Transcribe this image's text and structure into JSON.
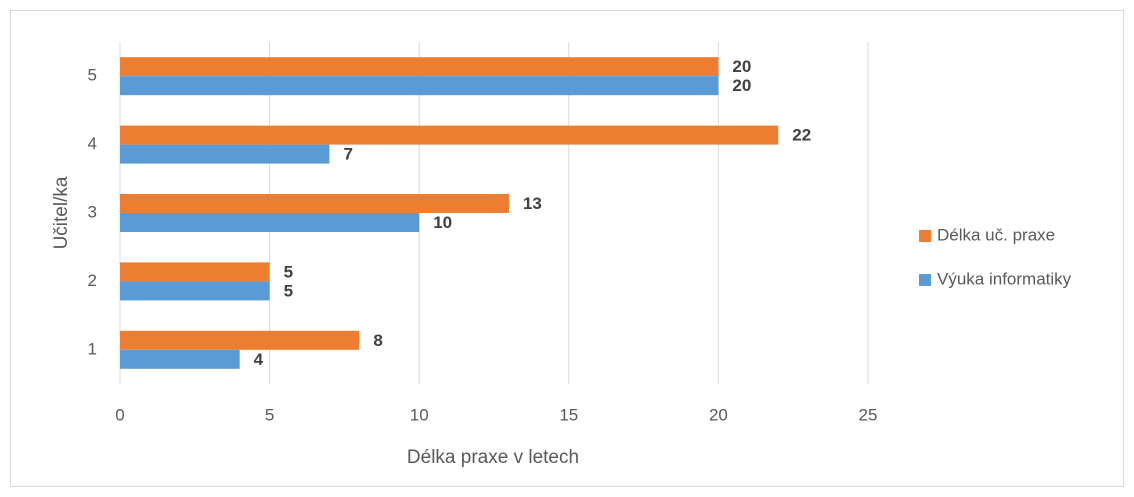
{
  "chart_data": {
    "type": "hbar",
    "categories": [
      "1",
      "2",
      "3",
      "4",
      "5"
    ],
    "series": [
      {
        "name": "Délka uč. praxe",
        "color": "#ed7d31",
        "values": [
          8,
          5,
          13,
          22,
          20
        ]
      },
      {
        "name": "Výuka informatiky",
        "color": "#5b9bd5",
        "values": [
          4,
          5,
          10,
          7,
          20
        ]
      }
    ],
    "xlabel": "Délka praxe v letech",
    "ylabel": "Učitel/ka",
    "xlim": [
      0,
      25
    ],
    "xticks": [
      0,
      5,
      10,
      15,
      20,
      25
    ],
    "grid": true,
    "legend": "right"
  }
}
